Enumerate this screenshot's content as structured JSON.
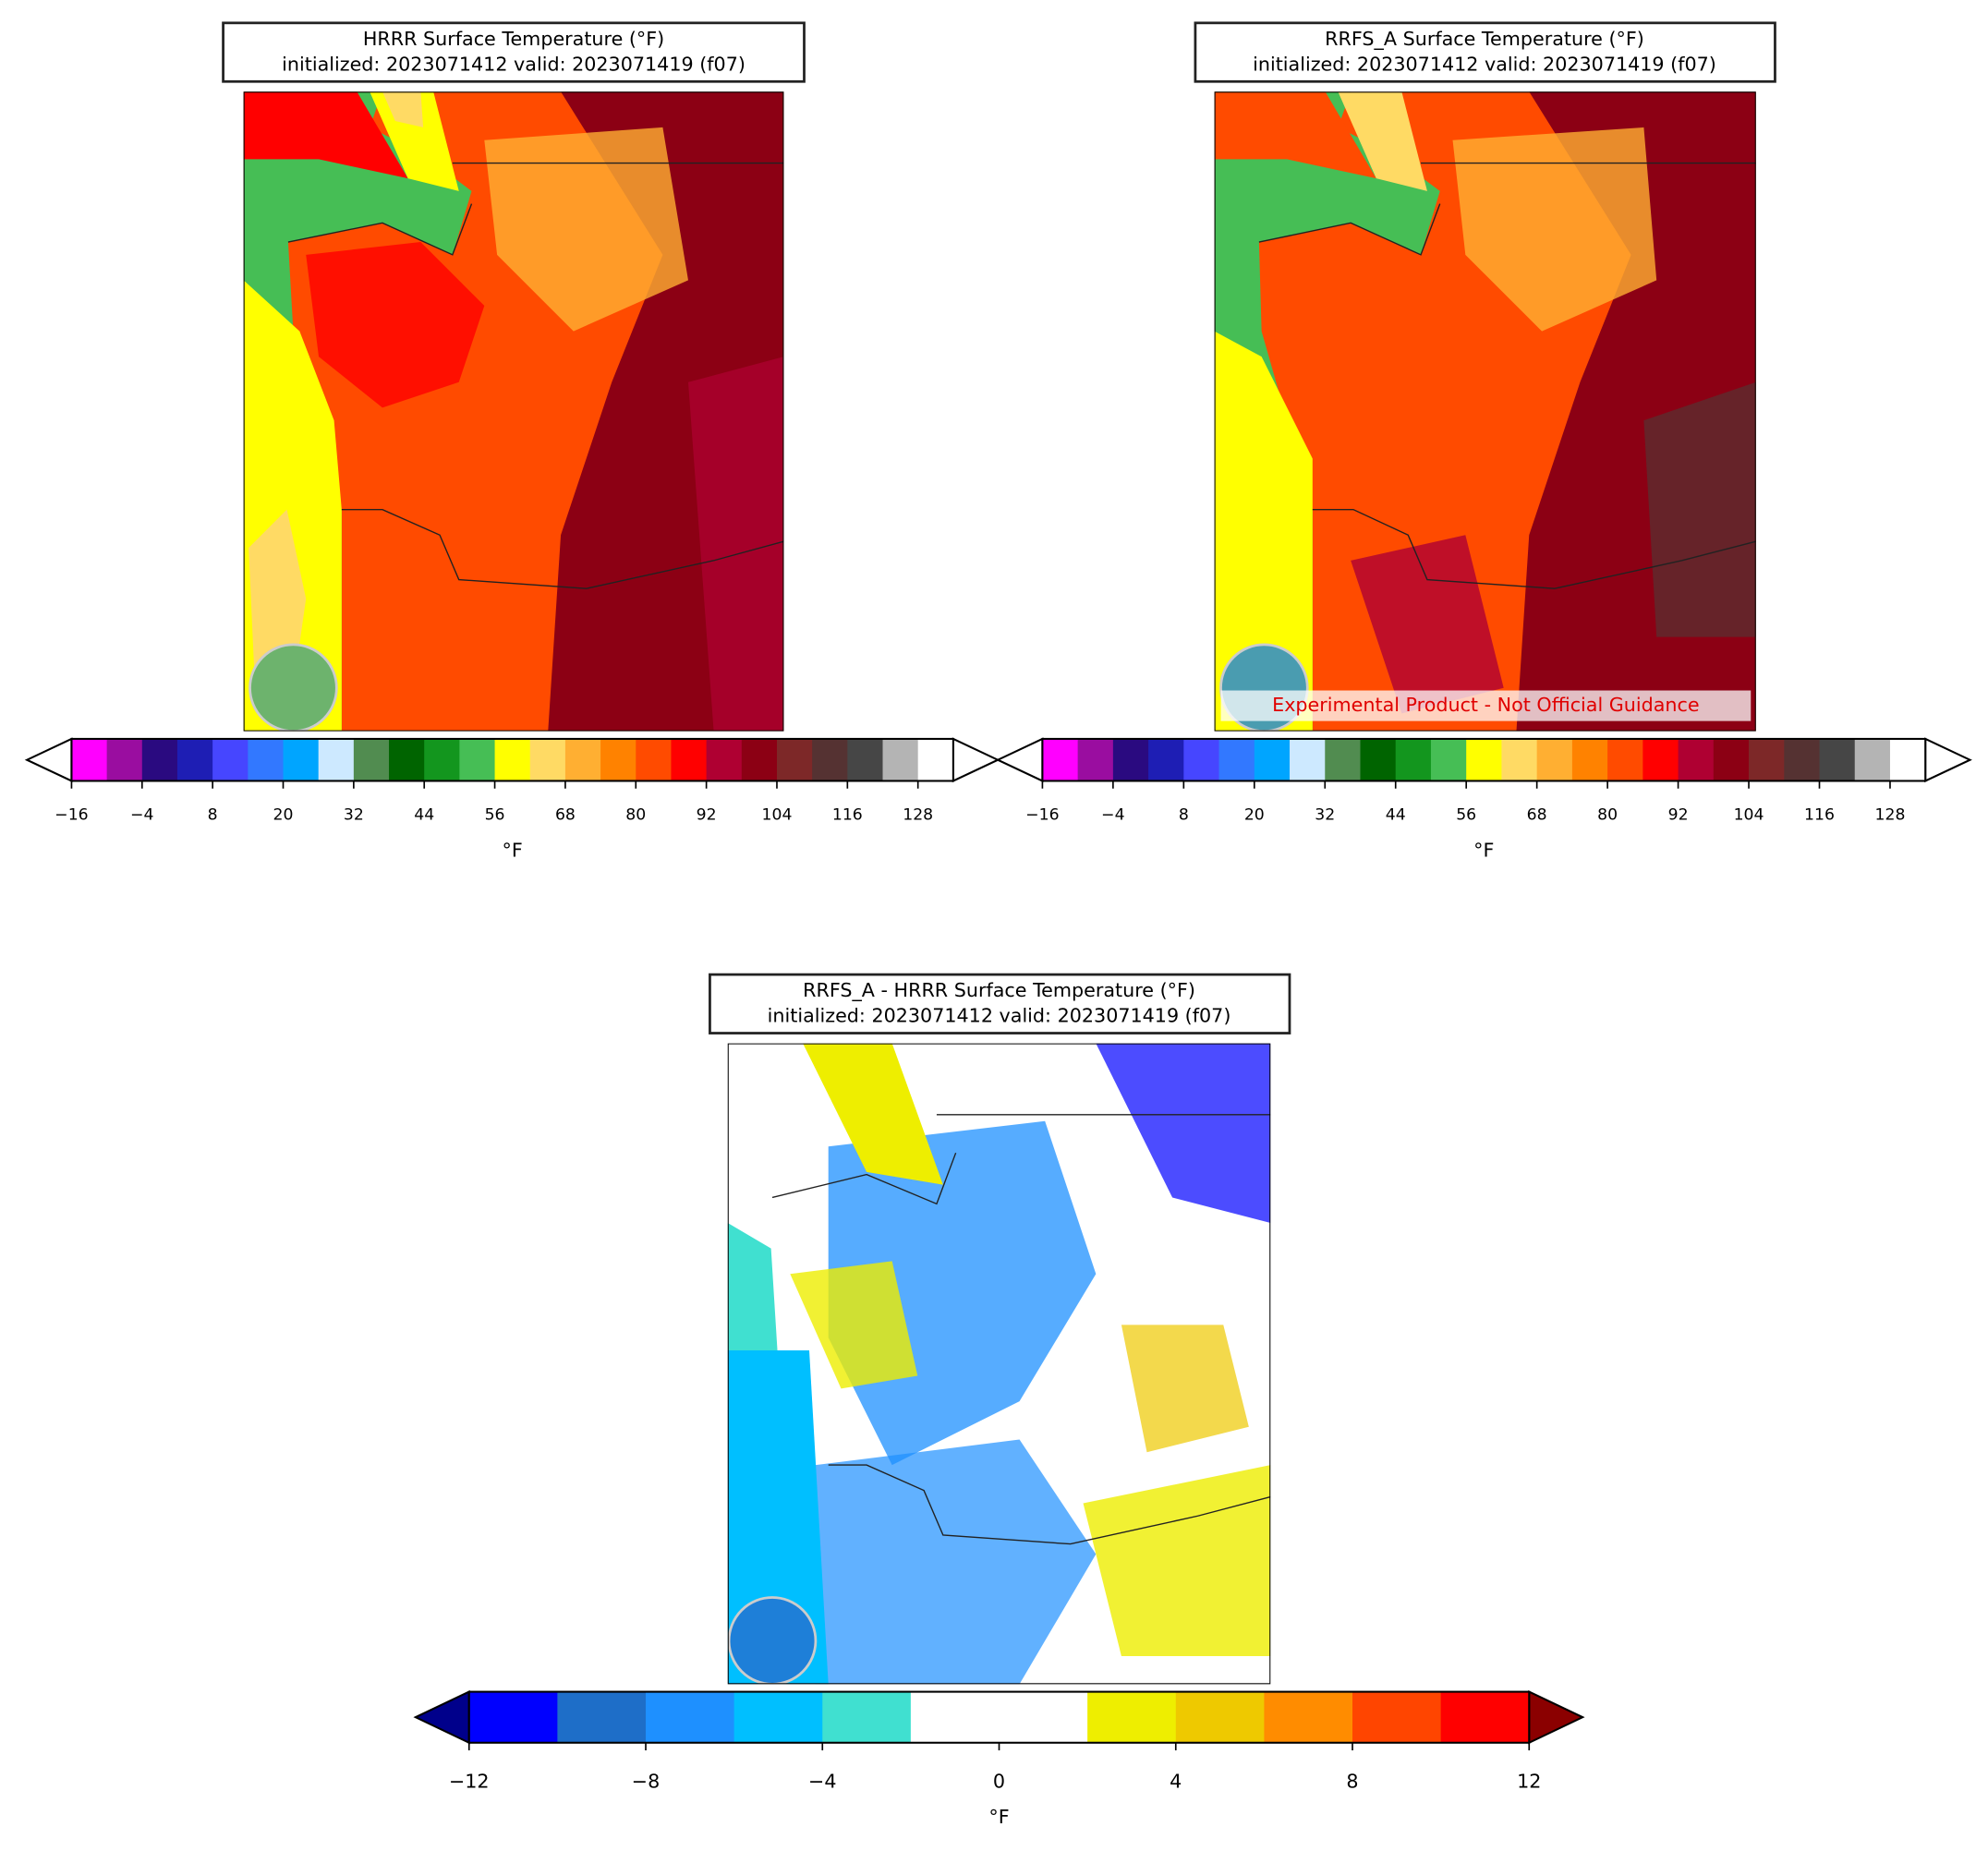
{
  "chart_data": [
    {
      "type": "map",
      "title": "HRRR Surface Temperature (°F)",
      "subtitle": "initialized: 2023071412 valid: 2023071419 (f07)",
      "colorbar": {
        "label": "°F",
        "levels": [
          -16,
          -10,
          -4,
          2,
          8,
          14,
          20,
          26,
          32,
          38,
          44,
          50,
          56,
          62,
          68,
          74,
          80,
          86,
          92,
          98,
          104,
          110,
          116,
          122,
          128,
          134
        ],
        "colors": [
          "#ff00ff",
          "#9a0da0",
          "#2a0a80",
          "#1e1eb4",
          "#4646ff",
          "#3278ff",
          "#00a5ff",
          "#cde9ff",
          "#518c50",
          "#006400",
          "#13961e",
          "#46be55",
          "#ffff00",
          "#ffda64",
          "#ffaf32",
          "#ff8200",
          "#ff4b00",
          "#ff0000",
          "#af0032",
          "#8c0014",
          "#7d2828",
          "#553232",
          "#464646",
          "#b4b4b4",
          "#ffffff"
        ],
        "under": "#ffffff",
        "over": "#ffffff",
        "ticks": [
          {
            "value": -16,
            "label": "−16"
          },
          {
            "value": -4,
            "label": "−4"
          },
          8,
          20,
          32,
          44,
          56,
          68,
          80,
          92,
          104,
          116,
          128
        ]
      }
    },
    {
      "type": "map",
      "title": "RRFS_A Surface Temperature (°F)",
      "subtitle": "initialized: 2023071412 valid: 2023071419 (f07)",
      "annotation": "Experimental Product - Not Official Guidance",
      "colorbar": {
        "label": "°F",
        "levels": [
          -16,
          -10,
          -4,
          2,
          8,
          14,
          20,
          26,
          32,
          38,
          44,
          50,
          56,
          62,
          68,
          74,
          80,
          86,
          92,
          98,
          104,
          110,
          116,
          122,
          128,
          134
        ],
        "colors": [
          "#ff00ff",
          "#9a0da0",
          "#2a0a80",
          "#1e1eb4",
          "#4646ff",
          "#3278ff",
          "#00a5ff",
          "#cde9ff",
          "#518c50",
          "#006400",
          "#13961e",
          "#46be55",
          "#ffff00",
          "#ffda64",
          "#ffaf32",
          "#ff8200",
          "#ff4b00",
          "#ff0000",
          "#af0032",
          "#8c0014",
          "#7d2828",
          "#553232",
          "#464646",
          "#b4b4b4",
          "#ffffff"
        ],
        "under": "#ffffff",
        "over": "#ffffff",
        "ticks": [
          {
            "value": -16,
            "label": "−16"
          },
          {
            "value": -4,
            "label": "−4"
          },
          8,
          20,
          32,
          44,
          56,
          68,
          80,
          92,
          104,
          116,
          128
        ]
      }
    },
    {
      "type": "map",
      "title": "RRFS_A - HRRR Surface Temperature (°F)",
      "subtitle": "initialized: 2023071412 valid: 2023071419 (f07)",
      "colorbar": {
        "label": "°F",
        "levels": [
          -12,
          -10,
          -8,
          -6,
          -4,
          -2,
          0,
          2,
          4,
          6,
          8,
          10,
          12
        ],
        "colors": [
          "#0000ff",
          "#1e6ec8",
          "#1e90ff",
          "#00bfff",
          "#40e0d0",
          "#ffffff",
          "#ffffff",
          "#eeee00",
          "#eec900",
          "#ff8c00",
          "#ff4500",
          "#ff0000"
        ],
        "under": "#00008b",
        "over": "#8b0000",
        "ticks": [
          {
            "value": -12,
            "label": "−12"
          },
          {
            "value": -8,
            "label": "−8"
          },
          {
            "value": -4,
            "label": "−4"
          },
          0,
          4,
          8,
          12
        ]
      }
    }
  ]
}
